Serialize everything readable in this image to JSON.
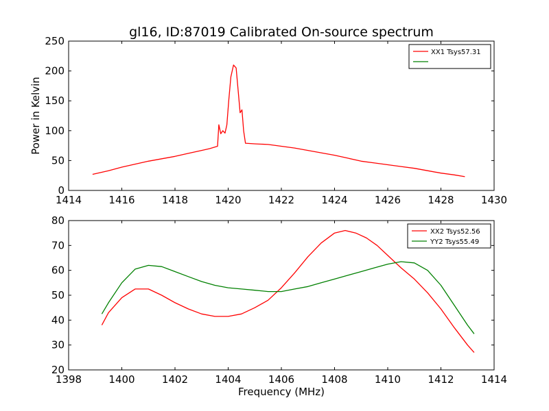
{
  "chart_data": [
    {
      "type": "line",
      "title": "gl16, ID:87019 Calibrated On-source spectrum",
      "xlabel": "",
      "ylabel": "Power in Kelvin",
      "xlim": [
        1414,
        1430
      ],
      "ylim": [
        0,
        250
      ],
      "xticks": [
        "1414",
        "1416",
        "1418",
        "1420",
        "1422",
        "1424",
        "1426",
        "1428",
        "1430"
      ],
      "yticks": [
        "0",
        "50",
        "100",
        "150",
        "200",
        "250"
      ],
      "legend_position": "top-right",
      "series": [
        {
          "name": "XX1 Tsys57.31",
          "color": "#ff0000",
          "x": [
            1414.9,
            1415.5,
            1416.0,
            1416.5,
            1417.0,
            1417.5,
            1418.0,
            1418.5,
            1419.0,
            1419.3,
            1419.6,
            1419.65,
            1419.72,
            1419.8,
            1419.88,
            1419.95,
            1420.02,
            1420.1,
            1420.2,
            1420.3,
            1420.38,
            1420.45,
            1420.52,
            1420.58,
            1420.65,
            1421.0,
            1421.5,
            1422.0,
            1422.5,
            1423.0,
            1423.5,
            1424.0,
            1424.5,
            1425.0,
            1425.5,
            1426.0,
            1426.5,
            1427.0,
            1427.5,
            1428.0,
            1428.5,
            1428.9
          ],
          "y": [
            27,
            33,
            39,
            44,
            49,
            53,
            57,
            62,
            67,
            70,
            74,
            110,
            95,
            100,
            96,
            110,
            150,
            190,
            210,
            205,
            165,
            130,
            135,
            100,
            79,
            78,
            77,
            74,
            71,
            67,
            63,
            59,
            54,
            49,
            46,
            43,
            40,
            37,
            33,
            29,
            26,
            23
          ]
        }
      ]
    },
    {
      "type": "line",
      "title": "",
      "xlabel": "Frequency (MHz)",
      "ylabel": "",
      "xlim": [
        1398,
        1414
      ],
      "ylim": [
        20,
        80
      ],
      "xticks": [
        "1398",
        "1400",
        "1402",
        "1404",
        "1406",
        "1408",
        "1410",
        "1412",
        "1414"
      ],
      "yticks": [
        "20",
        "30",
        "40",
        "50",
        "60",
        "70",
        "80"
      ],
      "legend_position": "top-right",
      "series": [
        {
          "name": "XX2 Tsys52.56",
          "color": "#ff0000",
          "x": [
            1399.25,
            1399.5,
            1400.0,
            1400.5,
            1401.0,
            1401.5,
            1402.0,
            1402.5,
            1403.0,
            1403.5,
            1404.0,
            1404.5,
            1405.0,
            1405.5,
            1406.0,
            1406.5,
            1407.0,
            1407.5,
            1408.0,
            1408.4,
            1408.8,
            1409.2,
            1409.6,
            1410.0,
            1410.5,
            1411.0,
            1411.5,
            1412.0,
            1412.5,
            1413.0,
            1413.25
          ],
          "y": [
            38,
            43,
            49,
            52.5,
            52.5,
            50,
            47,
            44.5,
            42.5,
            41.5,
            41.5,
            42.5,
            45,
            48,
            53,
            59,
            65.5,
            71,
            75,
            76,
            75,
            73,
            70,
            66,
            61,
            56.5,
            51,
            44.5,
            37,
            30,
            27
          ]
        },
        {
          "name": "YY2 Tsys55.49",
          "color": "#008000",
          "x": [
            1399.25,
            1399.5,
            1400.0,
            1400.5,
            1401.0,
            1401.5,
            1402.0,
            1402.5,
            1403.0,
            1403.5,
            1404.0,
            1404.5,
            1405.0,
            1405.5,
            1406.0,
            1406.5,
            1407.0,
            1407.5,
            1408.0,
            1408.5,
            1409.0,
            1409.5,
            1410.0,
            1410.5,
            1411.0,
            1411.5,
            1412.0,
            1412.5,
            1413.0,
            1413.25
          ],
          "y": [
            42.5,
            47,
            55,
            60.5,
            62,
            61.5,
            59.5,
            57.5,
            55.5,
            54,
            53,
            52.5,
            52,
            51.5,
            51.5,
            52.5,
            53.5,
            55,
            56.5,
            58,
            59.5,
            61,
            62.5,
            63.5,
            63,
            60,
            54,
            46,
            38,
            34.5
          ]
        }
      ]
    }
  ]
}
